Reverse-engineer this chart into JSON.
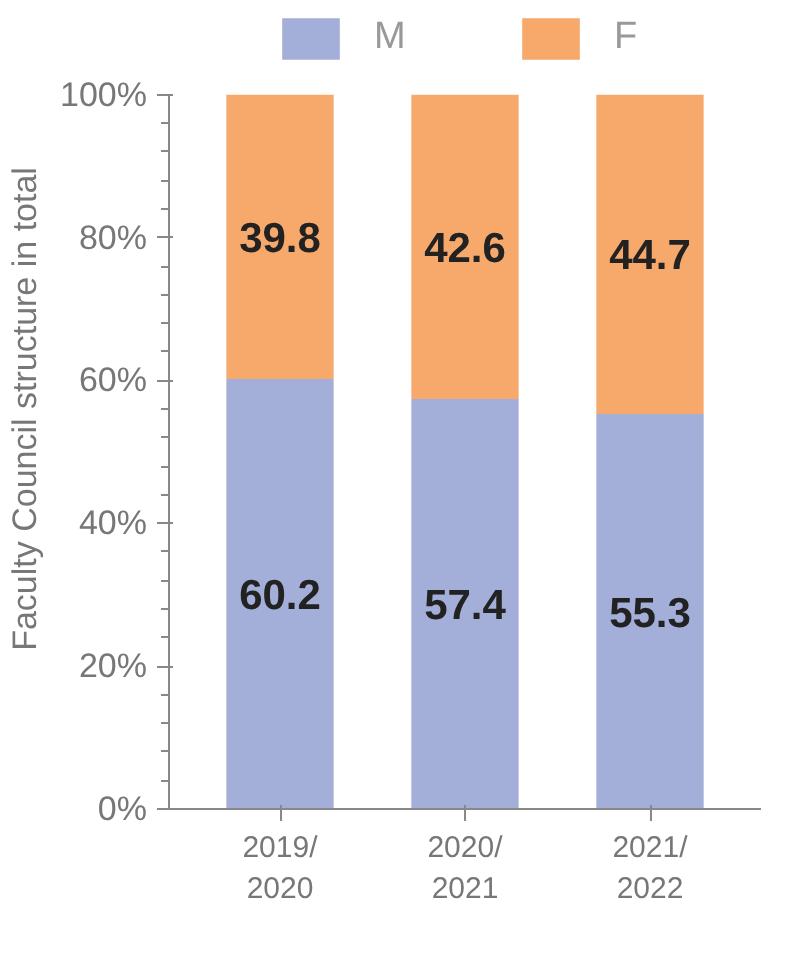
{
  "chart_data": {
    "type": "bar",
    "stacked": true,
    "ylabel": "Faculty Council structure in total",
    "categories": [
      "2019/\n2020",
      "2020/\n2021",
      "2021/\n2022"
    ],
    "series": [
      {
        "name": "M",
        "color": "#a3aed9",
        "values": [
          60.2,
          57.4,
          55.3
        ]
      },
      {
        "name": "F",
        "color": "#f7a86b",
        "values": [
          39.8,
          42.6,
          44.7
        ]
      }
    ],
    "ylim": [
      0,
      100
    ],
    "yticks": [
      {
        "value": 0,
        "label": "0%"
      },
      {
        "value": 20,
        "label": "20%"
      },
      {
        "value": 40,
        "label": "40%"
      },
      {
        "value": 60,
        "label": "60%"
      },
      {
        "value": 80,
        "label": "80%"
      },
      {
        "value": 100,
        "label": "100%"
      }
    ],
    "data_labels": true,
    "legend": "top",
    "grid": false
  }
}
